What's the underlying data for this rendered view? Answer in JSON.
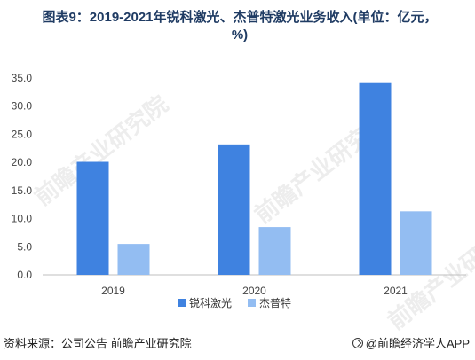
{
  "title": "图表9：2019-2021年锐科激光、杰普特激光业务收入(单位：亿元，%)",
  "source": "资料来源：公司公告 前瞻产业研究院",
  "brand": "@前瞻经济学人APP",
  "watermark": "前瞻产业研究院",
  "colors": {
    "series1": "#3f82e0",
    "series2": "#93bdf2"
  },
  "chart_data": {
    "type": "bar",
    "categories": [
      "2019",
      "2020",
      "2021"
    ],
    "series": [
      {
        "name": "锐科激光",
        "values": [
          20.1,
          23.2,
          34.1
        ]
      },
      {
        "name": "杰普特",
        "values": [
          5.5,
          8.5,
          11.3
        ]
      }
    ],
    "yticks": [
      "0.0",
      "5.0",
      "10.0",
      "15.0",
      "20.0",
      "25.0",
      "30.0",
      "35.0"
    ],
    "ylim": [
      0,
      35
    ],
    "legend": "bottom",
    "grid": false
  }
}
